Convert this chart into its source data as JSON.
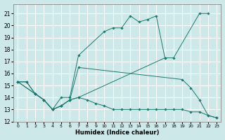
{
  "xlabel": "Humidex (Indice chaleur)",
  "background_color": "#cce8e8",
  "grid_color": "#ffffff",
  "line_color": "#1a7a6e",
  "xlim": [
    -0.5,
    23.5
  ],
  "ylim": [
    12,
    21.8
  ],
  "xticks": [
    0,
    1,
    2,
    3,
    4,
    5,
    6,
    7,
    8,
    9,
    10,
    11,
    12,
    13,
    14,
    15,
    16,
    17,
    18,
    19,
    20,
    21,
    22,
    23
  ],
  "yticks": [
    12,
    13,
    14,
    15,
    16,
    17,
    18,
    19,
    20,
    21
  ],
  "curves": [
    {
      "x": [
        0,
        1,
        2,
        3,
        4,
        5,
        6,
        7,
        10,
        11,
        12,
        13,
        14,
        15,
        16,
        17,
        18,
        21,
        22
      ],
      "y": [
        15.3,
        15.3,
        14.3,
        13.8,
        13.0,
        14.0,
        14.0,
        17.5,
        19.5,
        19.8,
        19.8,
        20.8,
        20.3,
        20.5,
        20.8,
        17.3,
        17.3,
        21.0,
        21.0
      ]
    },
    {
      "x": [
        0,
        1,
        2,
        3,
        4,
        5,
        6,
        7,
        17
      ],
      "y": [
        15.3,
        15.3,
        14.3,
        13.8,
        13.0,
        13.3,
        13.8,
        14.0,
        17.3
      ]
    },
    {
      "x": [
        0,
        2,
        3,
        4,
        5,
        6,
        7,
        19,
        20,
        21,
        22,
        23
      ],
      "y": [
        15.3,
        14.3,
        13.8,
        13.0,
        13.3,
        13.8,
        16.5,
        15.5,
        14.8,
        13.8,
        12.5,
        12.3
      ]
    },
    {
      "x": [
        0,
        2,
        3,
        4,
        5,
        6,
        7,
        8,
        9,
        10,
        11,
        12,
        13,
        14,
        15,
        16,
        17,
        18,
        19,
        20,
        21,
        22,
        23
      ],
      "y": [
        15.3,
        14.3,
        13.8,
        13.0,
        13.3,
        13.8,
        14.0,
        13.8,
        13.5,
        13.3,
        13.0,
        13.0,
        13.0,
        13.0,
        13.0,
        13.0,
        13.0,
        13.0,
        13.0,
        12.8,
        12.8,
        12.5,
        12.3
      ]
    }
  ]
}
